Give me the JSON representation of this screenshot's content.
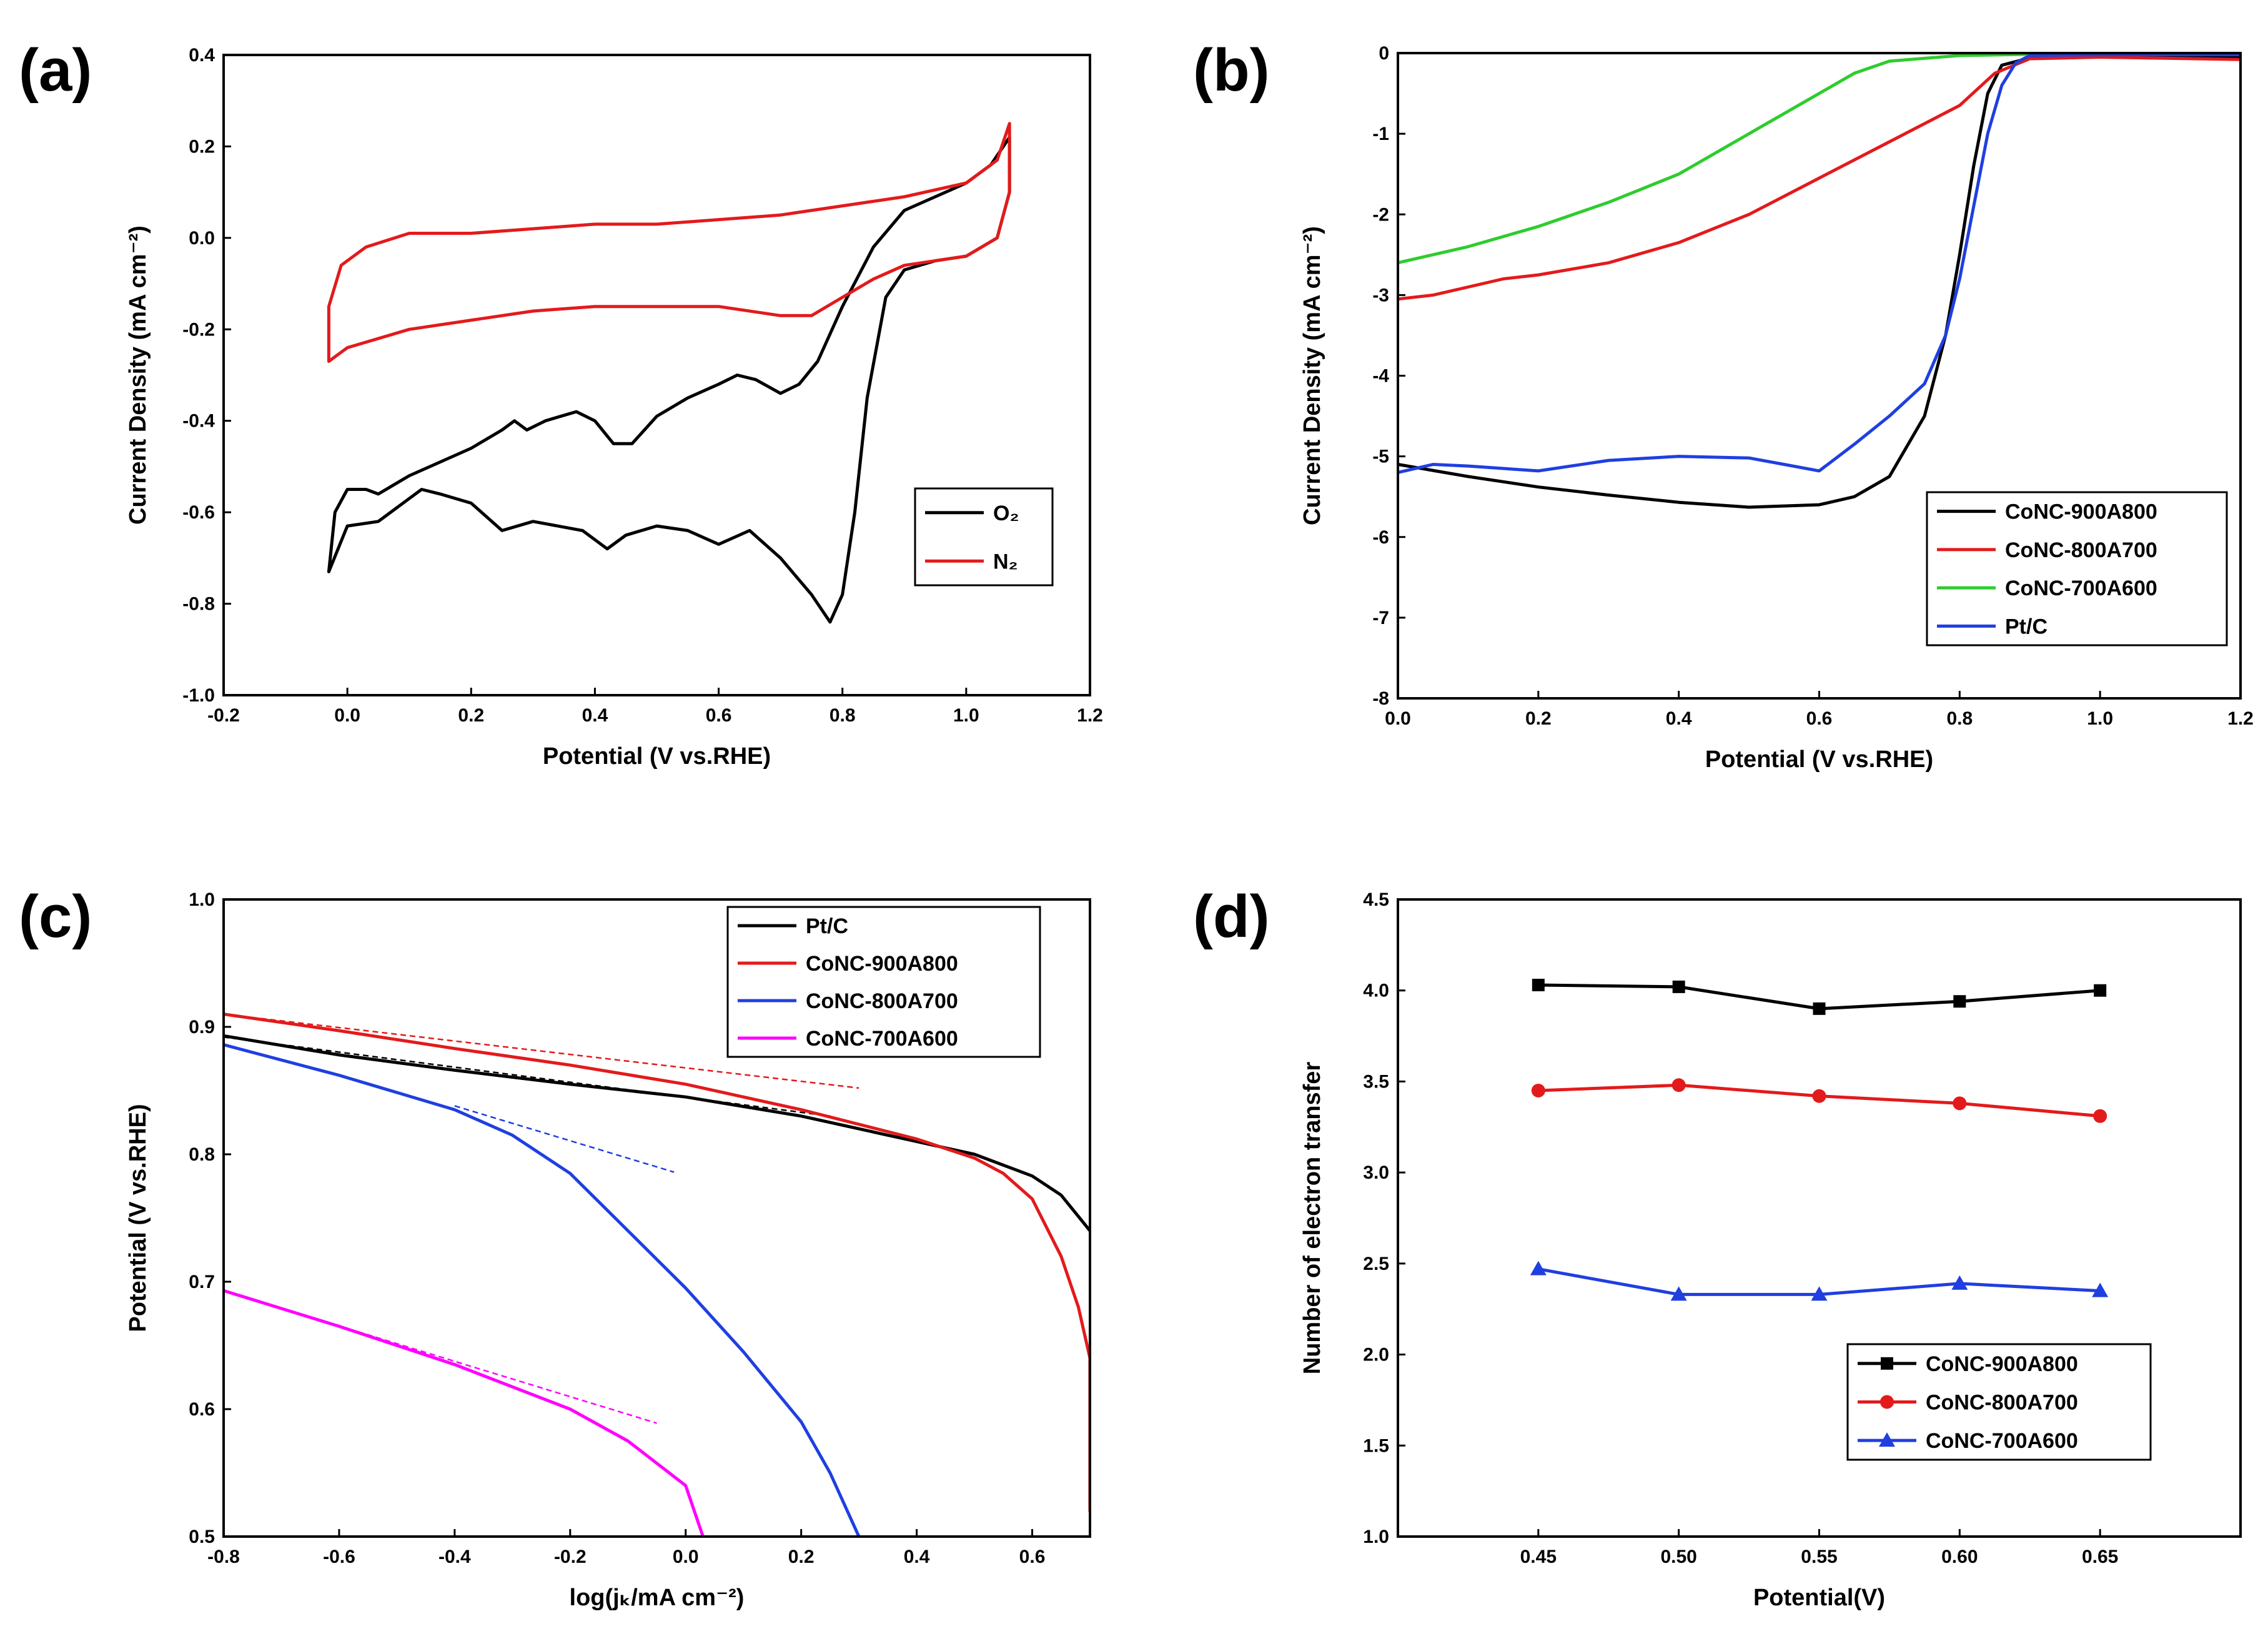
{
  "figure": {
    "panel_labels": [
      "(a)",
      "(b)",
      "(c)",
      "(d)"
    ]
  },
  "chart_data": [
    {
      "panel": "(a)",
      "type": "line",
      "xlabel": "Potential (V vs.RHE)",
      "ylabel": "Current Density (mA cm⁻²)",
      "xlim": [
        -0.2,
        1.2
      ],
      "ylim": [
        -1.0,
        0.4
      ],
      "xticks": [
        -0.2,
        0.0,
        0.2,
        0.4,
        0.6,
        0.8,
        1.0,
        1.2
      ],
      "yticks": [
        -1.0,
        -0.8,
        -0.6,
        -0.4,
        -0.2,
        0.0,
        0.2,
        0.4
      ],
      "xtick_decimals": 1,
      "ytick_decimals": 1,
      "legend_position": "bottom-right",
      "series": [
        {
          "name": "O₂",
          "color": "#000000",
          "points": [
            [
              -0.03,
              -0.73
            ],
            [
              -0.02,
              -0.6
            ],
            [
              0.0,
              -0.55
            ],
            [
              0.03,
              -0.55
            ],
            [
              0.05,
              -0.56
            ],
            [
              0.1,
              -0.52
            ],
            [
              0.15,
              -0.49
            ],
            [
              0.2,
              -0.46
            ],
            [
              0.25,
              -0.42
            ],
            [
              0.27,
              -0.4
            ],
            [
              0.29,
              -0.42
            ],
            [
              0.32,
              -0.4
            ],
            [
              0.37,
              -0.38
            ],
            [
              0.4,
              -0.4
            ],
            [
              0.43,
              -0.45
            ],
            [
              0.46,
              -0.45
            ],
            [
              0.5,
              -0.39
            ],
            [
              0.55,
              -0.35
            ],
            [
              0.6,
              -0.32
            ],
            [
              0.63,
              -0.3
            ],
            [
              0.66,
              -0.31
            ],
            [
              0.7,
              -0.34
            ],
            [
              0.73,
              -0.32
            ],
            [
              0.76,
              -0.27
            ],
            [
              0.8,
              -0.15
            ],
            [
              0.85,
              -0.02
            ],
            [
              0.9,
              0.06
            ],
            [
              0.95,
              0.09
            ],
            [
              1.0,
              0.12
            ],
            [
              1.04,
              0.16
            ],
            [
              1.07,
              0.22
            ],
            [
              1.07,
              0.1
            ],
            [
              1.05,
              0.0
            ],
            [
              1.0,
              -0.04
            ],
            [
              0.95,
              -0.05
            ],
            [
              0.9,
              -0.07
            ],
            [
              0.87,
              -0.13
            ],
            [
              0.84,
              -0.35
            ],
            [
              0.82,
              -0.6
            ],
            [
              0.8,
              -0.78
            ],
            [
              0.78,
              -0.84
            ],
            [
              0.75,
              -0.78
            ],
            [
              0.7,
              -0.7
            ],
            [
              0.65,
              -0.64
            ],
            [
              0.6,
              -0.67
            ],
            [
              0.55,
              -0.64
            ],
            [
              0.5,
              -0.63
            ],
            [
              0.45,
              -0.65
            ],
            [
              0.42,
              -0.68
            ],
            [
              0.38,
              -0.64
            ],
            [
              0.3,
              -0.62
            ],
            [
              0.25,
              -0.64
            ],
            [
              0.2,
              -0.58
            ],
            [
              0.15,
              -0.56
            ],
            [
              0.12,
              -0.55
            ],
            [
              0.08,
              -0.59
            ],
            [
              0.05,
              -0.62
            ],
            [
              0.0,
              -0.63
            ],
            [
              -0.03,
              -0.73
            ]
          ]
        },
        {
          "name": "N₂",
          "color": "#e31a1c",
          "points": [
            [
              -0.03,
              -0.27
            ],
            [
              -0.03,
              -0.15
            ],
            [
              -0.01,
              -0.06
            ],
            [
              0.03,
              -0.02
            ],
            [
              0.1,
              0.01
            ],
            [
              0.2,
              0.01
            ],
            [
              0.3,
              0.02
            ],
            [
              0.4,
              0.03
            ],
            [
              0.5,
              0.03
            ],
            [
              0.6,
              0.04
            ],
            [
              0.7,
              0.05
            ],
            [
              0.8,
              0.07
            ],
            [
              0.9,
              0.09
            ],
            [
              1.0,
              0.12
            ],
            [
              1.05,
              0.17
            ],
            [
              1.07,
              0.25
            ],
            [
              1.07,
              0.1
            ],
            [
              1.05,
              0.0
            ],
            [
              1.0,
              -0.04
            ],
            [
              0.9,
              -0.06
            ],
            [
              0.85,
              -0.09
            ],
            [
              0.8,
              -0.13
            ],
            [
              0.75,
              -0.17
            ],
            [
              0.7,
              -0.17
            ],
            [
              0.6,
              -0.15
            ],
            [
              0.5,
              -0.15
            ],
            [
              0.4,
              -0.15
            ],
            [
              0.3,
              -0.16
            ],
            [
              0.2,
              -0.18
            ],
            [
              0.1,
              -0.2
            ],
            [
              0.0,
              -0.24
            ],
            [
              -0.03,
              -0.27
            ]
          ]
        }
      ]
    },
    {
      "panel": "(b)",
      "type": "line",
      "xlabel": "Potential (V vs.RHE)",
      "ylabel": "Current Density (mA cm⁻²)",
      "xlim": [
        0.0,
        1.2
      ],
      "ylim": [
        -8,
        0
      ],
      "xticks": [
        0.0,
        0.2,
        0.4,
        0.6,
        0.8,
        1.0,
        1.2
      ],
      "yticks": [
        -8,
        -7,
        -6,
        -5,
        -4,
        -3,
        -2,
        -1,
        0
      ],
      "xtick_decimals": 1,
      "ytick_decimals": 0,
      "legend_position": "bottom-right",
      "series": [
        {
          "name": "CoNC-900A800",
          "color": "#000000",
          "points": [
            [
              0.0,
              -5.1
            ],
            [
              0.1,
              -5.25
            ],
            [
              0.2,
              -5.38
            ],
            [
              0.3,
              -5.48
            ],
            [
              0.4,
              -5.57
            ],
            [
              0.5,
              -5.63
            ],
            [
              0.6,
              -5.6
            ],
            [
              0.65,
              -5.5
            ],
            [
              0.7,
              -5.25
            ],
            [
              0.75,
              -4.5
            ],
            [
              0.78,
              -3.5
            ],
            [
              0.8,
              -2.5
            ],
            [
              0.82,
              -1.4
            ],
            [
              0.84,
              -0.5
            ],
            [
              0.86,
              -0.15
            ],
            [
              0.9,
              -0.06
            ],
            [
              1.0,
              -0.04
            ],
            [
              1.2,
              -0.05
            ]
          ]
        },
        {
          "name": "CoNC-800A700",
          "color": "#e31a1c",
          "points": [
            [
              0.0,
              -3.05
            ],
            [
              0.05,
              -3.0
            ],
            [
              0.1,
              -2.9
            ],
            [
              0.15,
              -2.8
            ],
            [
              0.2,
              -2.75
            ],
            [
              0.3,
              -2.6
            ],
            [
              0.4,
              -2.35
            ],
            [
              0.5,
              -2.0
            ],
            [
              0.6,
              -1.55
            ],
            [
              0.7,
              -1.1
            ],
            [
              0.8,
              -0.65
            ],
            [
              0.85,
              -0.25
            ],
            [
              0.9,
              -0.07
            ],
            [
              1.0,
              -0.05
            ],
            [
              1.2,
              -0.08
            ]
          ]
        },
        {
          "name": "CoNC-700A600",
          "color": "#2ecc2e",
          "points": [
            [
              0.0,
              -2.6
            ],
            [
              0.1,
              -2.4
            ],
            [
              0.2,
              -2.15
            ],
            [
              0.3,
              -1.85
            ],
            [
              0.4,
              -1.5
            ],
            [
              0.5,
              -1.0
            ],
            [
              0.6,
              -0.5
            ],
            [
              0.65,
              -0.25
            ],
            [
              0.7,
              -0.1
            ],
            [
              0.8,
              -0.03
            ],
            [
              1.0,
              0.0
            ],
            [
              1.2,
              0.0
            ]
          ]
        },
        {
          "name": "Pt/C",
          "color": "#1f3fe0",
          "points": [
            [
              0.0,
              -5.2
            ],
            [
              0.05,
              -5.1
            ],
            [
              0.1,
              -5.12
            ],
            [
              0.2,
              -5.18
            ],
            [
              0.3,
              -5.05
            ],
            [
              0.4,
              -5.0
            ],
            [
              0.5,
              -5.02
            ],
            [
              0.55,
              -5.1
            ],
            [
              0.6,
              -5.18
            ],
            [
              0.65,
              -4.85
            ],
            [
              0.7,
              -4.5
            ],
            [
              0.75,
              -4.1
            ],
            [
              0.78,
              -3.5
            ],
            [
              0.8,
              -2.8
            ],
            [
              0.82,
              -1.9
            ],
            [
              0.84,
              -1.0
            ],
            [
              0.86,
              -0.4
            ],
            [
              0.88,
              -0.12
            ],
            [
              0.9,
              -0.03
            ],
            [
              1.0,
              -0.02
            ],
            [
              1.2,
              -0.02
            ]
          ]
        }
      ]
    },
    {
      "panel": "(c)",
      "type": "line",
      "xlabel": "log(jₖ/mA cm⁻²)",
      "ylabel": "Potential (V vs.RHE)",
      "xlim": [
        -0.8,
        0.7
      ],
      "ylim": [
        0.5,
        1.0
      ],
      "xticks": [
        -0.8,
        -0.6,
        -0.4,
        -0.2,
        0.0,
        0.2,
        0.4,
        0.6
      ],
      "yticks": [
        0.5,
        0.6,
        0.7,
        0.8,
        0.9,
        1.0
      ],
      "xtick_decimals": 1,
      "ytick_decimals": 1,
      "legend_position": "top-right",
      "series": [
        {
          "name": "Pt/C",
          "color": "#000000",
          "points": [
            [
              -0.8,
              0.893
            ],
            [
              -0.6,
              0.878
            ],
            [
              -0.4,
              0.866
            ],
            [
              -0.2,
              0.855
            ],
            [
              0.0,
              0.845
            ],
            [
              0.2,
              0.83
            ],
            [
              0.4,
              0.81
            ],
            [
              0.5,
              0.8
            ],
            [
              0.6,
              0.783
            ],
            [
              0.65,
              0.768
            ],
            [
              0.7,
              0.74
            ]
          ]
        },
        {
          "name": "CoNC-900A800",
          "color": "#e31a1c",
          "points": [
            [
              -0.8,
              0.91
            ],
            [
              -0.6,
              0.897
            ],
            [
              -0.4,
              0.883
            ],
            [
              -0.2,
              0.87
            ],
            [
              0.0,
              0.855
            ],
            [
              0.2,
              0.835
            ],
            [
              0.4,
              0.812
            ],
            [
              0.5,
              0.797
            ],
            [
              0.55,
              0.785
            ],
            [
              0.6,
              0.765
            ],
            [
              0.65,
              0.72
            ],
            [
              0.68,
              0.68
            ],
            [
              0.7,
              0.64
            ],
            [
              0.7,
              0.52
            ]
          ]
        },
        {
          "name": "CoNC-800A700",
          "color": "#1f3fe0",
          "points": [
            [
              -0.8,
              0.886
            ],
            [
              -0.6,
              0.862
            ],
            [
              -0.4,
              0.835
            ],
            [
              -0.3,
              0.815
            ],
            [
              -0.2,
              0.785
            ],
            [
              -0.1,
              0.74
            ],
            [
              0.0,
              0.695
            ],
            [
              0.1,
              0.645
            ],
            [
              0.2,
              0.59
            ],
            [
              0.25,
              0.55
            ],
            [
              0.3,
              0.5
            ]
          ]
        },
        {
          "name": "CoNC-700A600",
          "color": "#ff00ff",
          "points": [
            [
              -0.8,
              0.693
            ],
            [
              -0.6,
              0.665
            ],
            [
              -0.4,
              0.635
            ],
            [
              -0.2,
              0.6
            ],
            [
              -0.1,
              0.575
            ],
            [
              0.0,
              0.54
            ],
            [
              0.03,
              0.5
            ]
          ]
        }
      ],
      "tafel_fits": [
        {
          "for": "Pt/C",
          "color": "#000000",
          "from": [
            -0.8,
            0.892
          ],
          "to": [
            0.25,
            0.83
          ]
        },
        {
          "for": "CoNC-900A800",
          "color": "#e31a1c",
          "from": [
            -0.8,
            0.91
          ],
          "to": [
            0.3,
            0.852
          ]
        },
        {
          "for": "CoNC-800A700",
          "color": "#1f3fe0",
          "from": [
            -0.4,
            0.838
          ],
          "to": [
            -0.02,
            0.786
          ]
        },
        {
          "for": "CoNC-700A600",
          "color": "#ff00ff",
          "from": [
            -0.8,
            0.693
          ],
          "to": [
            -0.05,
            0.589
          ]
        }
      ]
    },
    {
      "panel": "(d)",
      "type": "line",
      "xlabel": "Potential(V)",
      "ylabel": "Number of electron transfer",
      "xlim": [
        0.4,
        0.7
      ],
      "ylim": [
        1.0,
        4.5
      ],
      "xticks": [
        0.45,
        0.5,
        0.55,
        0.6,
        0.65
      ],
      "yticks": [
        1.0,
        1.5,
        2.0,
        2.5,
        3.0,
        3.5,
        4.0,
        4.5
      ],
      "xtick_decimals": 2,
      "ytick_decimals": 1,
      "legend_position": "bottom-right",
      "series": [
        {
          "name": "CoNC-900A800",
          "color": "#000000",
          "marker": "square",
          "points": [
            [
              0.45,
              4.03
            ],
            [
              0.5,
              4.02
            ],
            [
              0.55,
              3.9
            ],
            [
              0.6,
              3.94
            ],
            [
              0.65,
              4.0
            ]
          ]
        },
        {
          "name": "CoNC-800A700",
          "color": "#e31a1c",
          "marker": "circle",
          "points": [
            [
              0.45,
              3.45
            ],
            [
              0.5,
              3.48
            ],
            [
              0.55,
              3.42
            ],
            [
              0.6,
              3.38
            ],
            [
              0.65,
              3.31
            ]
          ]
        },
        {
          "name": "CoNC-700A600",
          "color": "#1f3fe0",
          "marker": "triangle",
          "points": [
            [
              0.45,
              2.47
            ],
            [
              0.5,
              2.33
            ],
            [
              0.55,
              2.33
            ],
            [
              0.6,
              2.39
            ],
            [
              0.65,
              2.35
            ]
          ]
        }
      ]
    }
  ]
}
